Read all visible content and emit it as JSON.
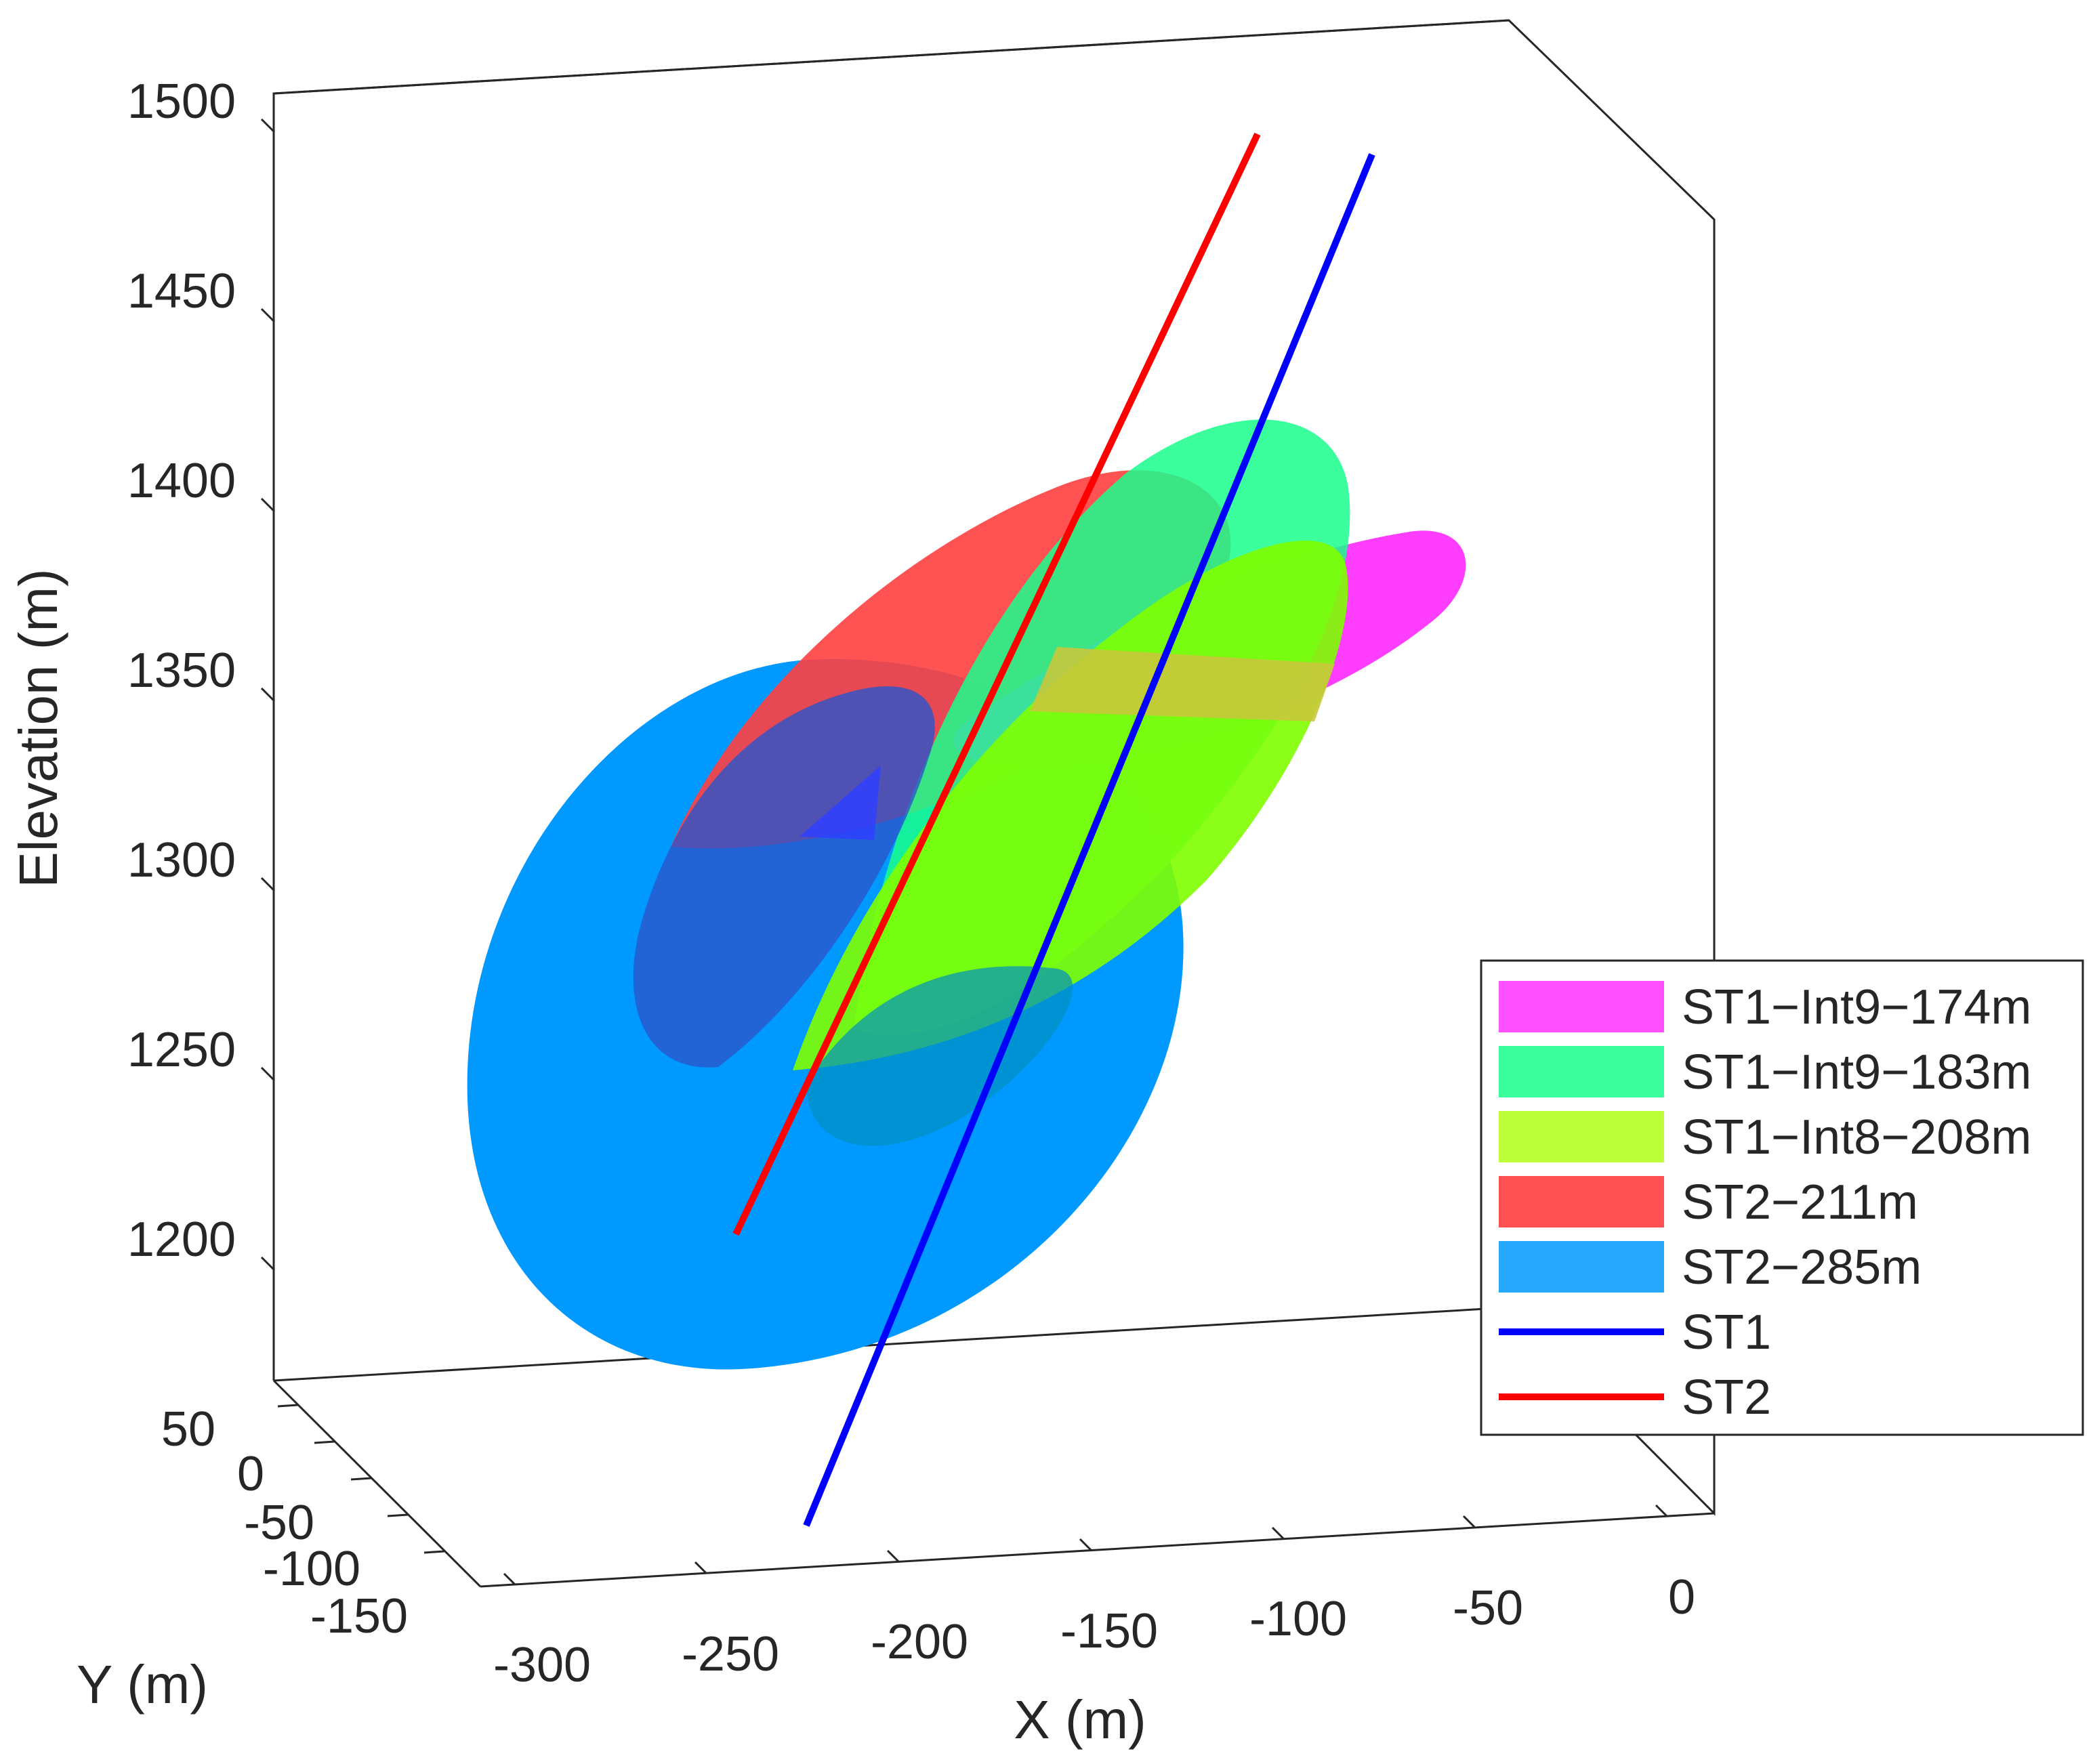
{
  "chart_data": {
    "type": "3d-surface",
    "xlabel": "X (m)",
    "ylabel": "Y (m)",
    "zlabel": "Elevation (m)",
    "x_ticks": [
      "-300",
      "-250",
      "-200",
      "-150",
      "-100",
      "-50",
      "0"
    ],
    "y_ticks": [
      "50",
      "0",
      "-50",
      "-100",
      "-150"
    ],
    "z_ticks": [
      "1500",
      "1450",
      "1400",
      "1350",
      "1300",
      "1250",
      "1200"
    ],
    "xlim": [
      -310,
      10
    ],
    "ylim": [
      -170,
      70
    ],
    "zlim": [
      1170,
      1510
    ],
    "grid": false,
    "legend_position": "right",
    "series": [
      {
        "name": "ST1−Int9−174m",
        "kind": "fracture-disk",
        "color": "#ff33ff",
        "alpha": 0.85
      },
      {
        "name": "ST1−Int9−183m",
        "kind": "fracture-disk",
        "color": "#19ff8c",
        "alpha": 0.85
      },
      {
        "name": "ST1−Int8−208m",
        "kind": "fracture-disk",
        "color": "#b3ff19",
        "alpha": 0.85
      },
      {
        "name": "ST2−211m",
        "kind": "fracture-disk",
        "color": "#ff3333",
        "alpha": 0.85
      },
      {
        "name": "ST2−285m",
        "kind": "fracture-disk",
        "color": "#0099ff",
        "alpha": 0.85
      },
      {
        "name": "ST1",
        "kind": "borehole",
        "color": "#0000ff"
      },
      {
        "name": "ST2",
        "kind": "borehole",
        "color": "#ff0000"
      }
    ]
  }
}
